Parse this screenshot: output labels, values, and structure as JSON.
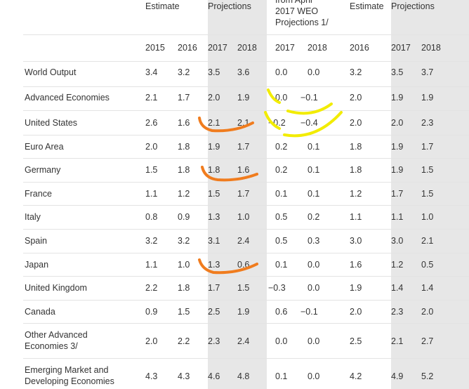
{
  "header": {
    "top_labels": {
      "estimate_a": "Estimate",
      "projections_a": "Projections",
      "weo_note": [
        "from April",
        "2017 WEO",
        "Projections 1/"
      ],
      "estimate_b": "Estimate",
      "projections_b": "Projections"
    },
    "years": [
      "2015",
      "2016",
      "2017",
      "2018",
      "2017",
      "2018",
      "2016",
      "2017",
      "2018"
    ]
  },
  "rows": [
    {
      "label": [
        "World Output"
      ],
      "values": [
        "3.4",
        "3.2",
        "3.5",
        "3.6",
        "0.0",
        "0.0",
        "3.2",
        "3.5",
        "3.7"
      ]
    },
    {
      "label": [
        "Advanced Economies"
      ],
      "values": [
        "2.1",
        "1.7",
        "2.0",
        "1.9",
        "0.0",
        "−0.1",
        "2.0",
        "1.9",
        "1.9"
      ]
    },
    {
      "label": [
        "United States"
      ],
      "values": [
        "2.6",
        "1.6",
        "2.1",
        "2.1",
        "−0.2",
        "−0.4",
        "2.0",
        "2.0",
        "2.3"
      ]
    },
    {
      "label": [
        "Euro Area"
      ],
      "values": [
        "2.0",
        "1.8",
        "1.9",
        "1.7",
        "0.2",
        "0.1",
        "1.8",
        "1.9",
        "1.7"
      ]
    },
    {
      "label": [
        "Germany"
      ],
      "values": [
        "1.5",
        "1.8",
        "1.8",
        "1.6",
        "0.2",
        "0.1",
        "1.8",
        "1.9",
        "1.5"
      ]
    },
    {
      "label": [
        "France"
      ],
      "values": [
        "1.1",
        "1.2",
        "1.5",
        "1.7",
        "0.1",
        "0.1",
        "1.2",
        "1.7",
        "1.5"
      ]
    },
    {
      "label": [
        "Italy"
      ],
      "values": [
        "0.8",
        "0.9",
        "1.3",
        "1.0",
        "0.5",
        "0.2",
        "1.1",
        "1.1",
        "1.0"
      ]
    },
    {
      "label": [
        "Spain"
      ],
      "values": [
        "3.2",
        "3.2",
        "3.1",
        "2.4",
        "0.5",
        "0.3",
        "3.0",
        "3.0",
        "2.1"
      ]
    },
    {
      "label": [
        "Japan"
      ],
      "values": [
        "1.1",
        "1.0",
        "1.3",
        "0.6",
        "0.1",
        "0.0",
        "1.6",
        "1.2",
        "0.5"
      ]
    },
    {
      "label": [
        "United Kingdom"
      ],
      "values": [
        "2.2",
        "1.8",
        "1.7",
        "1.5",
        "−0.3",
        "0.0",
        "1.9",
        "1.4",
        "1.4"
      ]
    },
    {
      "label": [
        "Canada"
      ],
      "values": [
        "0.9",
        "1.5",
        "2.5",
        "1.9",
        "0.6",
        "−0.1",
        "2.0",
        "2.3",
        "2.0"
      ]
    },
    {
      "label": [
        "Other Advanced",
        "Economies 3/"
      ],
      "values": [
        "2.0",
        "2.2",
        "2.3",
        "2.4",
        "0.0",
        "0.0",
        "2.5",
        "2.1",
        "2.7"
      ]
    },
    {
      "label": [
        "Emerging Market and",
        "Developing Economies"
      ],
      "values": [
        "4.3",
        "4.3",
        "4.6",
        "4.8",
        "0.1",
        "0.0",
        "4.2",
        "4.9",
        "5.2"
      ]
    }
  ],
  "colors": {
    "shade": "#e7e7e7",
    "text": "#333333",
    "orange_mark": "#f07c1e",
    "yellow_mark": "#f2ec00"
  }
}
